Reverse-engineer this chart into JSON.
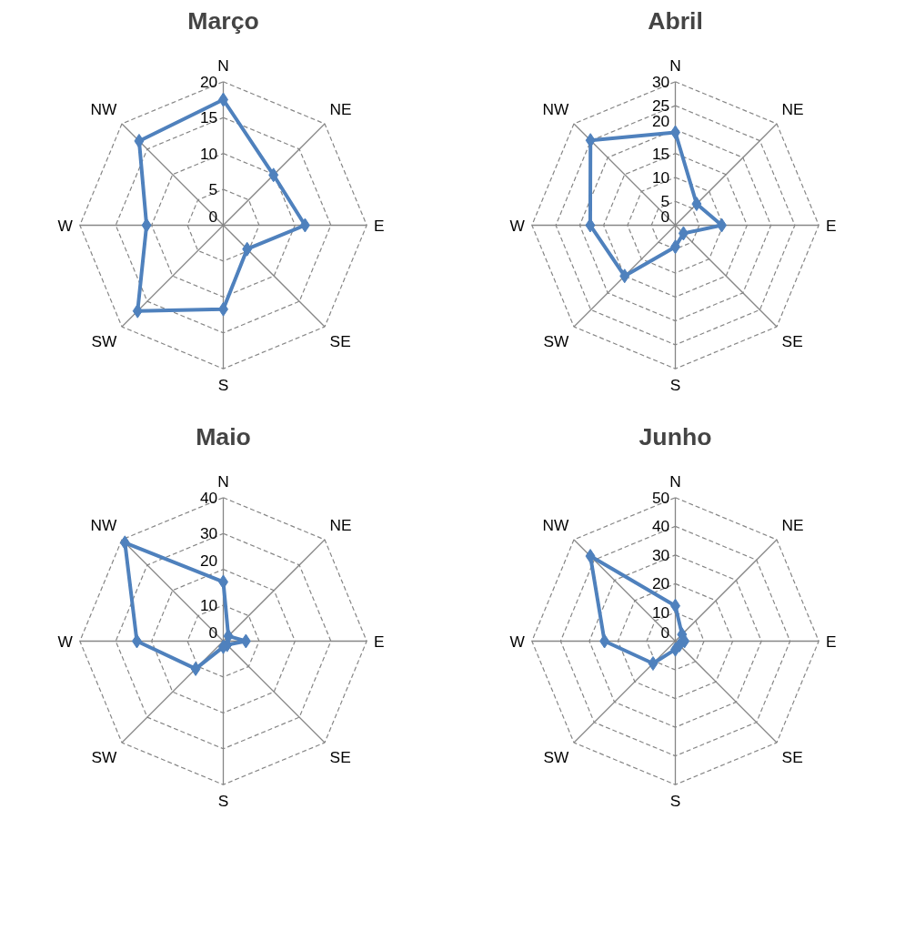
{
  "chart_data": [
    {
      "type": "radar",
      "title": "Março",
      "categories": [
        "N",
        "NE",
        "E",
        "SE",
        "S",
        "SW",
        "W",
        "NW"
      ],
      "ylim": [
        0,
        20
      ],
      "yticks": [
        0,
        5,
        10,
        15,
        20
      ],
      "grid": true,
      "marker": "diamond",
      "series": [
        {
          "color": "#4f81bd",
          "values": [
            17.5,
            9.9,
            11.4,
            4.7,
            11.7,
            16.9,
            10.7,
            16.6
          ]
        }
      ]
    },
    {
      "type": "radar",
      "title": "Abril",
      "categories": [
        "N",
        "NE",
        "E",
        "SE",
        "S",
        "SW",
        "W",
        "NW"
      ],
      "ylim": [
        0,
        30
      ],
      "yticks": [
        0,
        5,
        10,
        15,
        20,
        25,
        30
      ],
      "grid": true,
      "marker": "diamond",
      "series": [
        {
          "color": "#4f81bd",
          "values": [
            19.4,
            6.3,
            9.7,
            2.4,
            4.5,
            15,
            17.8,
            25.1
          ]
        }
      ]
    },
    {
      "type": "radar",
      "title": "Maio",
      "categories": [
        "N",
        "NE",
        "E",
        "SE",
        "S",
        "SW",
        "W",
        "NW"
      ],
      "ylim": [
        0,
        40
      ],
      "yticks": [
        0,
        10,
        20,
        30,
        40
      ],
      "grid": true,
      "marker": "diamond",
      "series": [
        {
          "color": "#4f81bd",
          "values": [
            16.5,
            2,
            6.3,
            1.5,
            1.6,
            10.9,
            24.1,
            38.8
          ]
        }
      ]
    },
    {
      "type": "radar",
      "title": "Junho",
      "categories": [
        "N",
        "NE",
        "E",
        "SE",
        "S",
        "SW",
        "W",
        "NW"
      ],
      "ylim": [
        0,
        50
      ],
      "yticks": [
        0,
        10,
        20,
        30,
        40,
        50
      ],
      "grid": true,
      "marker": "diamond",
      "series": [
        {
          "color": "#4f81bd",
          "values": [
            12.3,
            3.3,
            3.2,
            2,
            2.9,
            11,
            24.7,
            41.9
          ]
        }
      ]
    }
  ]
}
